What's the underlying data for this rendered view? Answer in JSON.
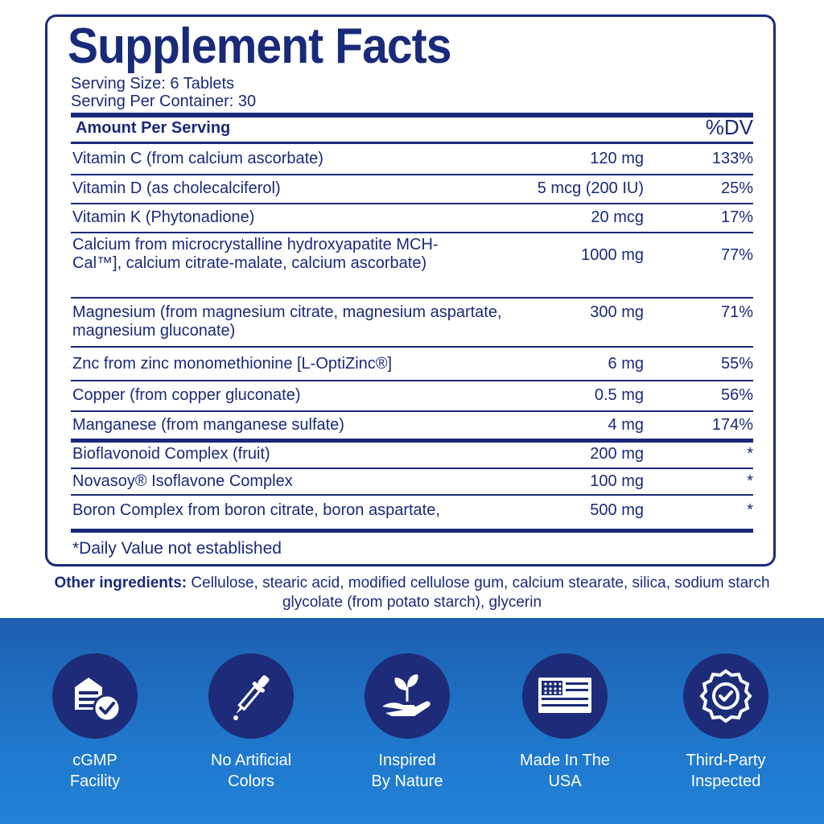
{
  "facts": {
    "title": "Supplement Facts",
    "serving_size": "Serving Size: 6 Tablets",
    "servings_per_container": "Serving Per Container: 30",
    "header_left": "Amount Per Serving",
    "header_right": "%DV",
    "rows": [
      {
        "name": "Vitamin C (from calcium ascorbate)",
        "amount": "120 mg",
        "dv": "133%"
      },
      {
        "name": "Vitamin D (as cholecalciferol)",
        "amount": "5 mcg (200 IU)",
        "dv": "25%"
      },
      {
        "name": "Vitamin K (Phytonadione)",
        "amount": "20 mcg",
        "dv": "17%"
      },
      {
        "name": "Calcium from microcrystalline hydroxyapatite MCH-Cal™], calcium citrate-malate, calcium ascorbate)",
        "amount": "1000 mg",
        "dv": "77%"
      },
      {
        "name": "Magnesium (from magnesium citrate, magnesium aspartate, magnesium gluconate)",
        "amount": "300 mg",
        "dv": "71%"
      },
      {
        "name": "Znc from zinc monomethionine [L-OptiZinc®]",
        "amount": "6 mg",
        "dv": "55%"
      },
      {
        "name": "Copper (from copper gluconate)",
        "amount": "0.5 mg",
        "dv": "56%"
      },
      {
        "name": "Manganese (from manganese sulfate)",
        "amount": "4 mg",
        "dv": "174%"
      },
      {
        "name": "Bioflavonoid Complex (fruit)",
        "amount": "200 mg",
        "dv": "*"
      },
      {
        "name": "Novasoy® Isoflavone Complex",
        "amount": "100 mg",
        "dv": "*"
      },
      {
        "name": "Boron Complex from boron citrate, boron aspartate,",
        "amount": "500 mg",
        "dv": "*"
      }
    ],
    "footnote": "*Daily Value not established"
  },
  "other_ingredients": {
    "label": "Other ingredients:",
    "text": " Cellulose, stearic acid, modified cellulose gum, calcium stearate, silica, sodium starch glycolate (from potato starch), glycerin"
  },
  "badges": [
    {
      "icon": "facility-check-icon",
      "line1": "cGMP",
      "line2": "Facility"
    },
    {
      "icon": "dropper-icon",
      "line1": "No Artificial",
      "line2": "Colors"
    },
    {
      "icon": "plant-hand-icon",
      "line1": "Inspired",
      "line2": "By Nature"
    },
    {
      "icon": "usa-flag-icon",
      "line1": "Made In The",
      "line2": "USA"
    },
    {
      "icon": "seal-check-icon",
      "line1": "Third-Party",
      "line2": "Inspected"
    }
  ],
  "colors": {
    "navy": "#1a2a7a",
    "band": "#1f77cc",
    "badge": "#1d2b78"
  }
}
